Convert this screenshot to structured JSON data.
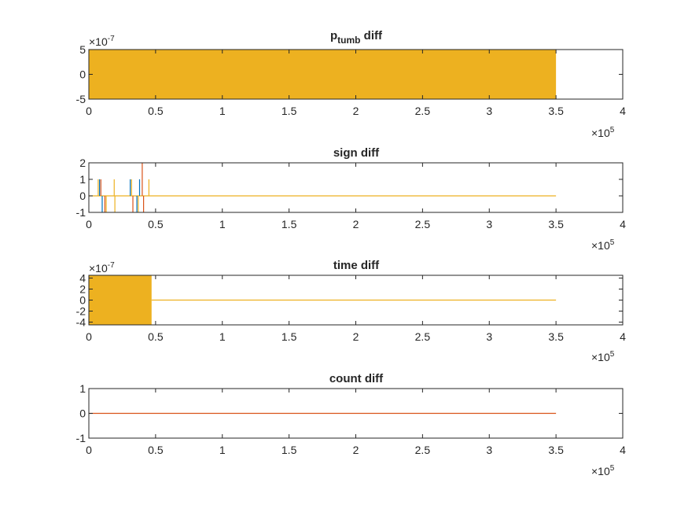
{
  "figure": {
    "background": "#ffffff"
  },
  "colors": {
    "blue": "#0072BD",
    "orange": "#D95319",
    "yellow": "#EDB120",
    "axis": "#262626"
  },
  "chart_data": [
    {
      "type": "line",
      "title_main": "p",
      "title_sub": "tumb",
      "title_rest": " diff",
      "xlim": [
        0,
        400000
      ],
      "ylim": [
        -5e-07,
        5e-07
      ],
      "x_ticks": [
        "0",
        "0.5",
        "1",
        "1.5",
        "2",
        "2.5",
        "3",
        "3.5",
        "4"
      ],
      "y_ticks": [
        {
          "v": 5,
          "label": "5"
        },
        {
          "v": 0,
          "label": "0"
        },
        {
          "v": -5,
          "label": "-5"
        }
      ],
      "y_exponent": {
        "base": "×10",
        "power": "-7"
      },
      "x_exponent": {
        "base": "×10",
        "power": "5"
      },
      "series": [
        {
          "color": "yellow",
          "kind": "band",
          "x": [
            0,
            350000
          ],
          "y": [
            -5e-07,
            5e-07
          ]
        }
      ]
    },
    {
      "type": "line",
      "title": "sign diff",
      "xlim": [
        0,
        400000
      ],
      "ylim": [
        -1,
        2
      ],
      "x_ticks": [
        "0",
        "0.5",
        "1",
        "1.5",
        "2",
        "2.5",
        "3",
        "3.5",
        "4"
      ],
      "y_ticks": [
        {
          "v": 2,
          "label": "2"
        },
        {
          "v": 1,
          "label": "1"
        },
        {
          "v": 0,
          "label": "0"
        },
        {
          "v": -1,
          "label": "-1"
        }
      ],
      "x_exponent": {
        "base": "×10",
        "power": "5"
      },
      "series": [
        {
          "color": "yellow",
          "kind": "line",
          "x": [
            0,
            350000
          ],
          "y": [
            0,
            0
          ]
        },
        {
          "color": "blue",
          "kind": "spikes",
          "points": [
            [
              8000,
              1
            ],
            [
              10000,
              -1
            ],
            [
              31000,
              1
            ],
            [
              36000,
              -1
            ],
            [
              38000,
              1
            ]
          ]
        },
        {
          "color": "orange",
          "kind": "spikes",
          "points": [
            [
              9000,
              1
            ],
            [
              12000,
              -1
            ],
            [
              33000,
              -1
            ],
            [
              40000,
              2
            ],
            [
              41000,
              -1
            ]
          ]
        },
        {
          "color": "yellow",
          "kind": "spikes",
          "points": [
            [
              7000,
              1
            ],
            [
              13000,
              -1
            ],
            [
              19000,
              1
            ],
            [
              19500,
              -1
            ],
            [
              32000,
              1
            ],
            [
              37000,
              -1
            ],
            [
              45000,
              1
            ]
          ]
        }
      ]
    },
    {
      "type": "line",
      "title": "time diff",
      "xlim": [
        0,
        400000
      ],
      "ylim": [
        -4.5e-07,
        4.5e-07
      ],
      "x_ticks": [
        "0",
        "0.5",
        "1",
        "1.5",
        "2",
        "2.5",
        "3",
        "3.5",
        "4"
      ],
      "y_ticks": [
        {
          "v": 4,
          "label": "4"
        },
        {
          "v": 2,
          "label": "2"
        },
        {
          "v": 0,
          "label": "0"
        },
        {
          "v": -2,
          "label": "-2"
        },
        {
          "v": -4,
          "label": "-4"
        }
      ],
      "y_exponent": {
        "base": "×10",
        "power": "-7"
      },
      "x_exponent": {
        "base": "×10",
        "power": "5"
      },
      "series": [
        {
          "color": "yellow",
          "kind": "band",
          "x": [
            0,
            47000
          ],
          "y": [
            -4.5e-07,
            4.5e-07
          ]
        },
        {
          "color": "yellow",
          "kind": "line",
          "x": [
            47000,
            350000
          ],
          "y": [
            0,
            0
          ]
        }
      ]
    },
    {
      "type": "line",
      "title": "count diff",
      "xlim": [
        0,
        400000
      ],
      "ylim": [
        -1,
        1
      ],
      "x_ticks": [
        "0",
        "0.5",
        "1",
        "1.5",
        "2",
        "2.5",
        "3",
        "3.5",
        "4"
      ],
      "y_ticks": [
        {
          "v": 1,
          "label": "1"
        },
        {
          "v": 0,
          "label": "0"
        },
        {
          "v": -1,
          "label": "-1"
        }
      ],
      "x_exponent": {
        "base": "×10",
        "power": "5"
      },
      "series": [
        {
          "color": "orange",
          "kind": "line",
          "x": [
            0,
            350000
          ],
          "y": [
            0,
            0
          ]
        }
      ]
    }
  ]
}
